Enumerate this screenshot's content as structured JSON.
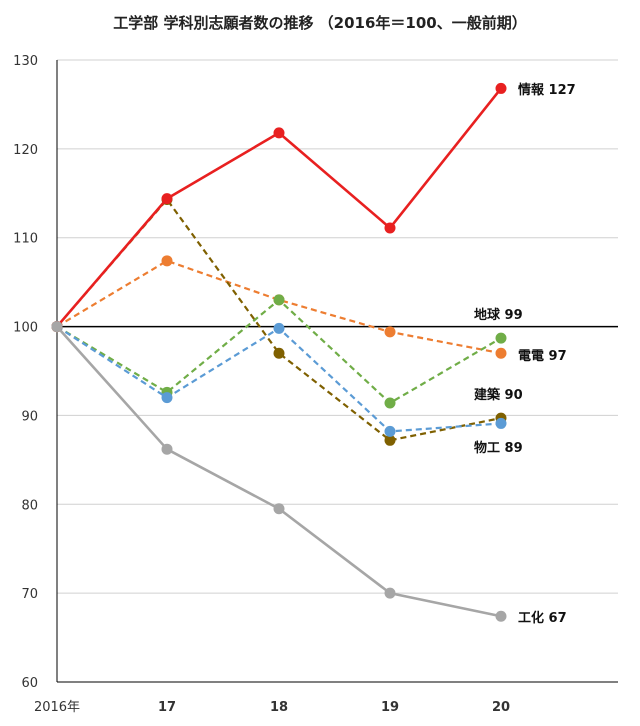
{
  "chart_data": {
    "type": "line",
    "title": "工学部 学科別志願者数の推移 （2016年＝100、一般前期）",
    "xlabel": "",
    "ylabel": "",
    "categories": [
      "2016年",
      "17",
      "18",
      "19",
      "20"
    ],
    "ylim": [
      60,
      130
    ],
    "yticks": [
      60,
      70,
      80,
      90,
      100,
      110,
      120,
      130
    ],
    "grid": true,
    "reference_line": 100,
    "legend": "none",
    "series": [
      {
        "name": "情報",
        "end_label": "127",
        "values": [
          100,
          114.4,
          121.8,
          111.1,
          126.8
        ],
        "color": "#e82020",
        "dash": false,
        "width": 2.6
      },
      {
        "name": "電電",
        "end_label": "97",
        "values": [
          100,
          107.4,
          103.0,
          99.4,
          97.0
        ],
        "color": "#ed7d31",
        "dash": true,
        "width": 2.2
      },
      {
        "name": "地球",
        "end_label": "99",
        "values": [
          100,
          92.6,
          103.0,
          91.4,
          98.7
        ],
        "color": "#70ad47",
        "dash": true,
        "width": 2.2
      },
      {
        "name": "建築",
        "end_label": "90",
        "values": [
          100,
          114.3,
          97.0,
          87.2,
          89.7
        ],
        "color": "#7f6000",
        "dash": true,
        "width": 2.2
      },
      {
        "name": "物工",
        "end_label": "89",
        "values": [
          100,
          92.0,
          99.8,
          88.2,
          89.1
        ],
        "color": "#5b9bd5",
        "dash": true,
        "width": 2.2
      },
      {
        "name": "工化",
        "end_label": "67",
        "values": [
          100,
          86.2,
          79.5,
          70.0,
          67.4
        ],
        "color": "#a6a6a6",
        "dash": false,
        "width": 2.6
      }
    ]
  }
}
